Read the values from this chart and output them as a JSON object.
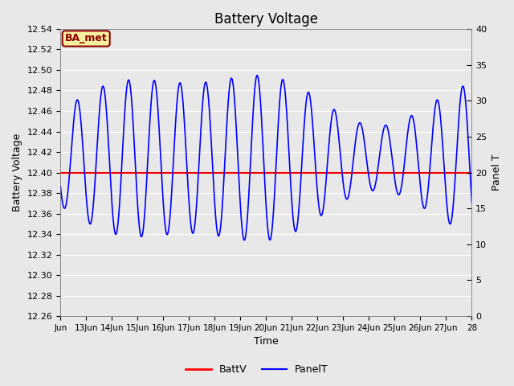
{
  "title": "Battery Voltage",
  "xlabel": "Time",
  "ylabel_left": "Battery Voltage",
  "ylabel_right": "Panel T",
  "annotation_text": "BA_met",
  "annotation_bg": "#f5f0a0",
  "annotation_border": "#8b0000",
  "annotation_text_color": "#8b0000",
  "xlim": [
    0,
    16
  ],
  "ylim_left": [
    12.26,
    12.54
  ],
  "ylim_right": [
    0,
    40
  ],
  "xtick_labels": [
    "Jun",
    "13Jun",
    "14Jun",
    "15Jun",
    "16Jun",
    "17Jun",
    "18Jun",
    "19Jun",
    "20Jun",
    "21Jun",
    "22Jun",
    "23Jun",
    "24Jun",
    "25Jun",
    "26Jun",
    "27Jun",
    "28"
  ],
  "ytick_left": [
    12.26,
    12.28,
    12.3,
    12.32,
    12.34,
    12.36,
    12.38,
    12.4,
    12.42,
    12.44,
    12.46,
    12.48,
    12.5,
    12.52,
    12.54
  ],
  "ytick_right": [
    0,
    5,
    10,
    15,
    20,
    25,
    30,
    35,
    40
  ],
  "battv_value": 12.4,
  "battv_color": "#ff0000",
  "panel_color": "#0000ff",
  "bg_color": "#e8e8e8",
  "grid_color": "#ffffff",
  "legend_battv": "BattV",
  "legend_panelt": "PanelT"
}
